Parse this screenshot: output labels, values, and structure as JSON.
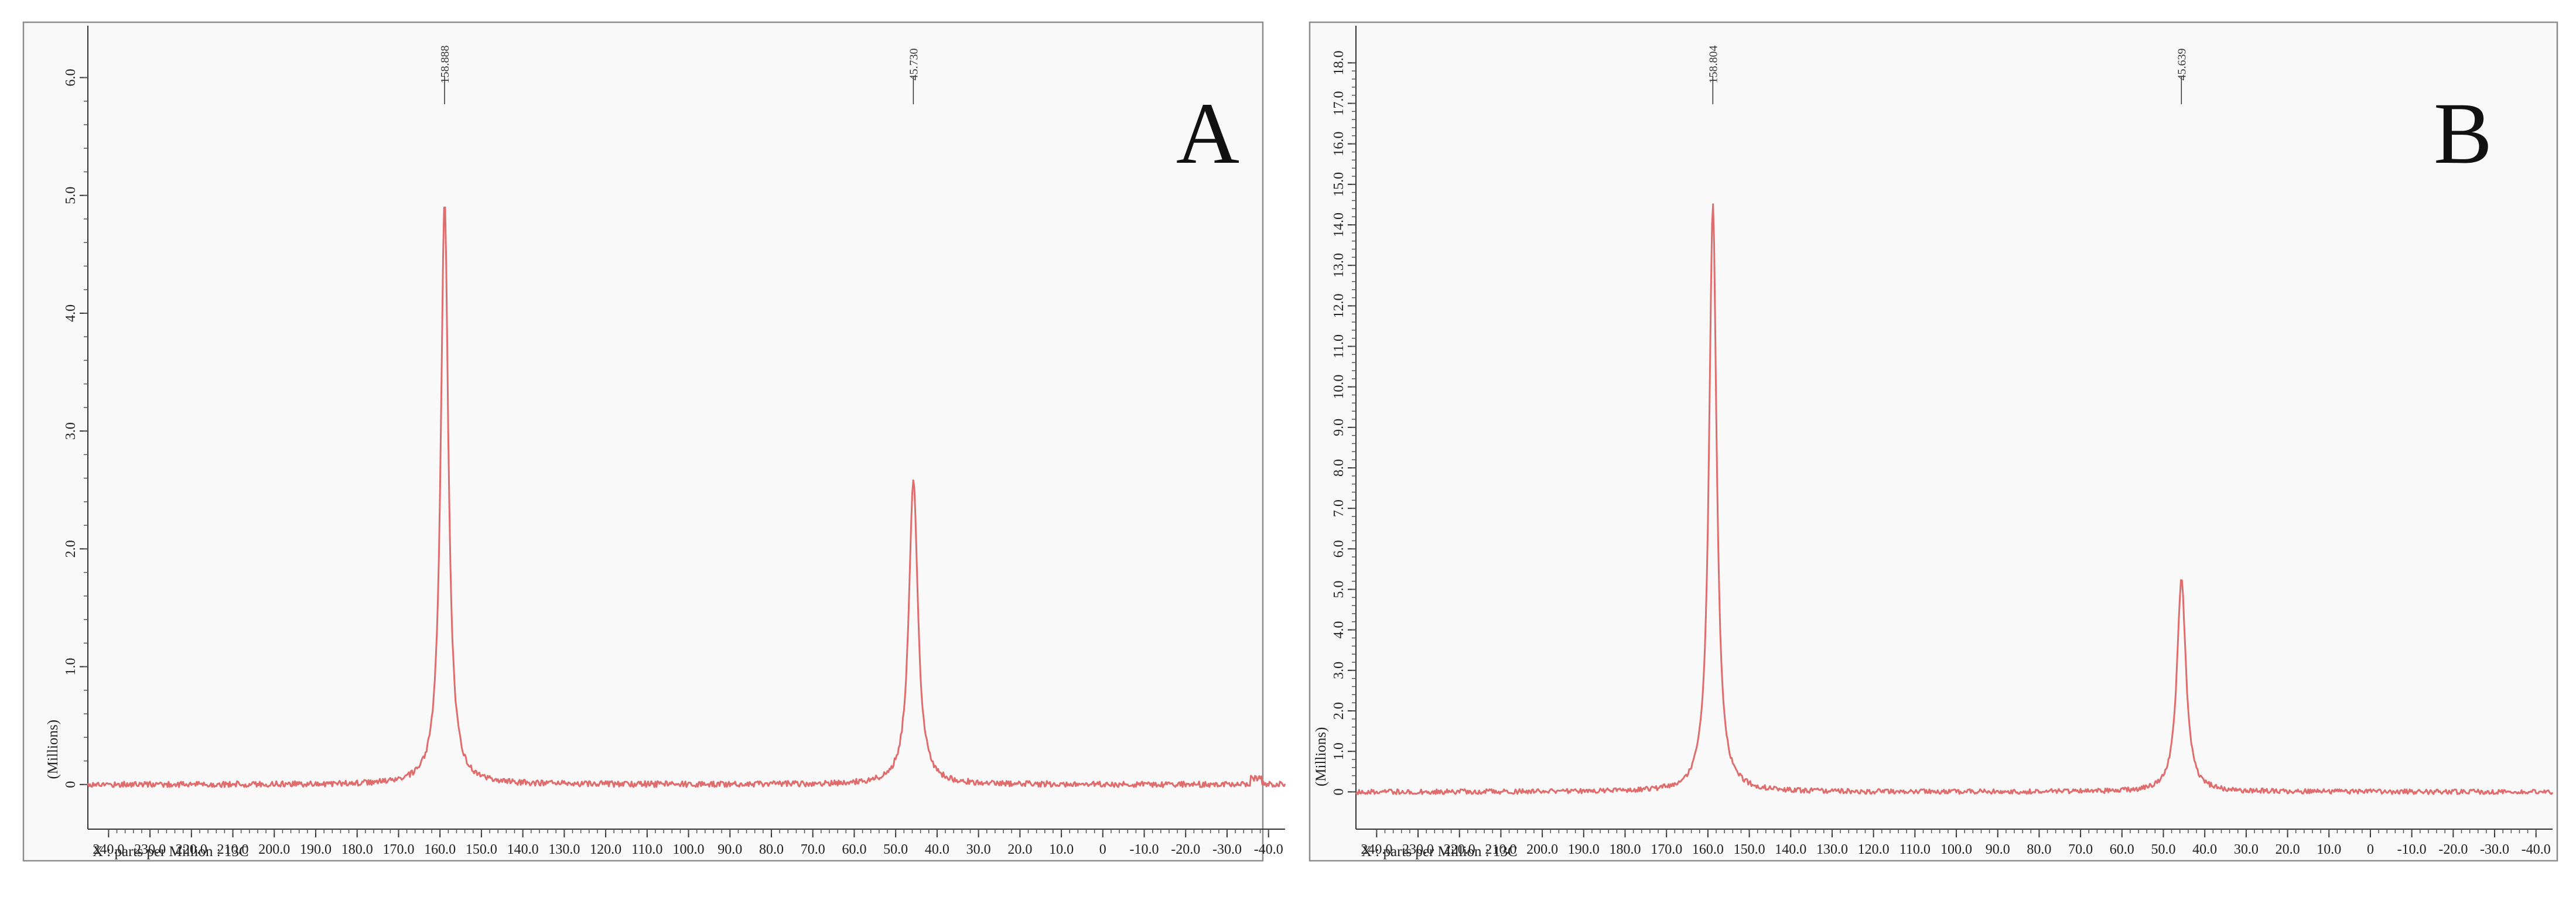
{
  "chart_data": [
    {
      "type": "line",
      "panel_label": "A",
      "xlabel": "X : parts per Million : 13C",
      "ylabel": "(Millions)",
      "xlim": [
        245,
        -44
      ],
      "ylim": [
        -0.2,
        6.4
      ],
      "x_reversed": true,
      "grid": false,
      "x_ticks": [
        "240.0",
        "230.0",
        "220.0",
        "210.0",
        "200.0",
        "190.0",
        "180.0",
        "170.0",
        "160.0",
        "150.0",
        "140.0",
        "130.0",
        "120.0",
        "110.0",
        "100.0",
        "90.0",
        "80.0",
        "70.0",
        "60.0",
        "50.0",
        "40.0",
        "30.0",
        "20.0",
        "10.0",
        "0",
        "-10.0",
        "-20.0",
        "-30.0",
        "-40.0"
      ],
      "x_tick_values": [
        240,
        230,
        220,
        210,
        200,
        190,
        180,
        170,
        160,
        150,
        140,
        130,
        120,
        110,
        100,
        90,
        80,
        70,
        60,
        50,
        40,
        30,
        20,
        10,
        0,
        -10,
        -20,
        -30,
        -40
      ],
      "y_ticks": [
        "0",
        "1.0",
        "2.0",
        "3.0",
        "4.0",
        "5.0",
        "6.0"
      ],
      "y_tick_values": [
        0,
        1,
        2,
        3,
        4,
        5,
        6
      ],
      "peaks": [
        {
          "label": "158.888",
          "x": 158.888,
          "y": 4.95,
          "width": 1.1
        },
        {
          "label": "45.730",
          "x": 45.73,
          "y": 2.6,
          "width": 1.3
        }
      ],
      "baseline": 0.0,
      "noise": 0.025,
      "series": [
        {
          "values": []
        }
      ]
    },
    {
      "type": "line",
      "panel_label": "B",
      "xlabel": "X : parts per Million : 13C",
      "ylabel": "(Millions)",
      "xlim": [
        245,
        -44
      ],
      "ylim": [
        -0.4,
        18.8
      ],
      "x_reversed": true,
      "grid": false,
      "x_ticks": [
        "240.0",
        "230.0",
        "220.0",
        "210.0",
        "200.0",
        "190.0",
        "180.0",
        "170.0",
        "160.0",
        "150.0",
        "140.0",
        "130.0",
        "120.0",
        "110.0",
        "100.0",
        "90.0",
        "80.0",
        "70.0",
        "60.0",
        "50.0",
        "40.0",
        "30.0",
        "20.0",
        "10.0",
        "0",
        "-10.0",
        "-20.0",
        "-30.0",
        "-40.0"
      ],
      "x_tick_values": [
        240,
        230,
        220,
        210,
        200,
        190,
        180,
        170,
        160,
        150,
        140,
        130,
        120,
        110,
        100,
        90,
        80,
        70,
        60,
        50,
        40,
        30,
        20,
        10,
        0,
        -10,
        -20,
        -30,
        -40
      ],
      "y_ticks": [
        "0",
        "1.0",
        "2.0",
        "3.0",
        "4.0",
        "5.0",
        "6.0",
        "7.0",
        "8.0",
        "9.0",
        "10.0",
        "11.0",
        "12.0",
        "13.0",
        "14.0",
        "15.0",
        "16.0",
        "17.0",
        "18.0"
      ],
      "y_tick_values": [
        0,
        1,
        2,
        3,
        4,
        5,
        6,
        7,
        8,
        9,
        10,
        11,
        12,
        13,
        14,
        15,
        16,
        17,
        18
      ],
      "peaks": [
        {
          "label": "158.804",
          "x": 158.804,
          "y": 14.5,
          "width": 1.1
        },
        {
          "label": "45.639",
          "x": 45.639,
          "y": 5.25,
          "width": 1.3
        }
      ],
      "baseline": 0.0,
      "noise": 0.06,
      "series": [
        {
          "values": []
        }
      ]
    }
  ],
  "colors": {
    "spectrum": "#e06d6d",
    "panel_background": "#f9f9f9",
    "frame": "#8c8c8c"
  }
}
